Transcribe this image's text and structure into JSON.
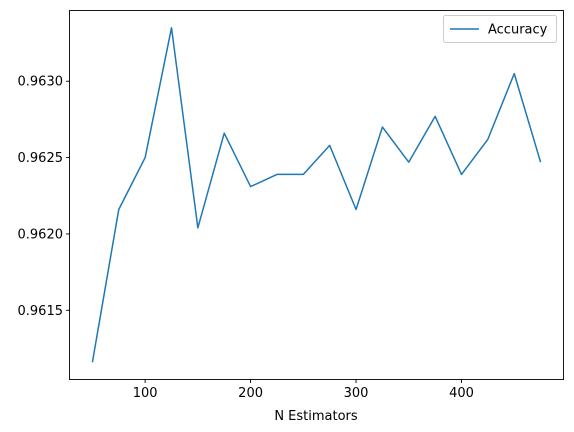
{
  "chart_data": {
    "type": "line",
    "title": "",
    "xlabel": "N Estimators",
    "ylabel": "",
    "grid": false,
    "legend_position": "top-right",
    "x": [
      50,
      75,
      100,
      125,
      150,
      175,
      200,
      225,
      250,
      275,
      300,
      325,
      350,
      375,
      400,
      425,
      450,
      475
    ],
    "series": [
      {
        "name": "Accuracy",
        "color": "#1f77b4",
        "values": [
          0.96116,
          0.96216,
          0.9625,
          0.96335,
          0.96204,
          0.96266,
          0.96231,
          0.96239,
          0.96239,
          0.96258,
          0.96216,
          0.9627,
          0.96247,
          0.96277,
          0.96239,
          0.96262,
          0.96305,
          0.96247
        ]
      }
    ],
    "xlim": [
      28.75,
      496.25
    ],
    "ylim": [
      0.96105,
      0.96346
    ],
    "xticks": [
      100,
      200,
      300,
      400
    ],
    "xtick_labels": [
      "100",
      "200",
      "300",
      "400"
    ],
    "yticks": [
      0.9615,
      0.962,
      0.9625,
      0.963
    ],
    "ytick_labels": [
      "0.9615",
      "0.9620",
      "0.9625",
      "0.9630"
    ]
  }
}
